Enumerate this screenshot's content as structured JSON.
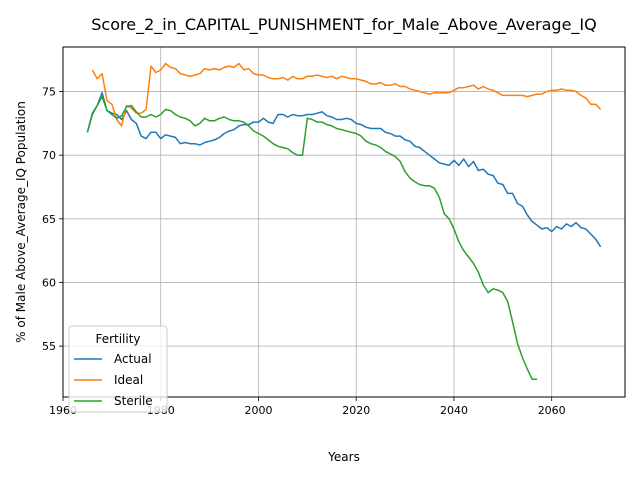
{
  "chart_data": {
    "type": "line",
    "title": "Score_2_in_CAPITAL_PUNISHMENT_for_Male_Above_Average_IQ",
    "xlabel": "Years",
    "ylabel": "% of Male Above_Average_IQ Population",
    "xlim": [
      1960,
      2075
    ],
    "ylim": [
      51,
      78.5
    ],
    "x_ticks": [
      1960,
      1980,
      2000,
      2020,
      2040,
      2060
    ],
    "y_ticks": [
      55,
      60,
      65,
      70,
      75
    ],
    "grid": true,
    "legend": {
      "title": "Fertility",
      "placement": "lower-left"
    },
    "series": [
      {
        "name": "Actual",
        "color": "#1f77b4",
        "points": [
          [
            1965,
            71.8
          ],
          [
            1966,
            73.2
          ],
          [
            1967,
            73.9
          ],
          [
            1968,
            74.9
          ],
          [
            1969,
            73.5
          ],
          [
            1970,
            73.3
          ],
          [
            1971,
            73.2
          ],
          [
            1972,
            72.8
          ],
          [
            1973,
            73.5
          ],
          [
            1974,
            72.8
          ],
          [
            1975,
            72.5
          ],
          [
            1976,
            71.5
          ],
          [
            1977,
            71.3
          ],
          [
            1978,
            71.8
          ],
          [
            1979,
            71.8
          ],
          [
            1980,
            71.3
          ],
          [
            1981,
            71.6
          ],
          [
            1982,
            71.5
          ],
          [
            1983,
            71.4
          ],
          [
            1984,
            70.9
          ],
          [
            1985,
            71.0
          ],
          [
            1986,
            70.9
          ],
          [
            1987,
            70.9
          ],
          [
            1988,
            70.8
          ],
          [
            1989,
            71.0
          ],
          [
            1990,
            71.1
          ],
          [
            1991,
            71.2
          ],
          [
            1992,
            71.4
          ],
          [
            1993,
            71.7
          ],
          [
            1994,
            71.9
          ],
          [
            1995,
            72.0
          ],
          [
            1996,
            72.3
          ],
          [
            1997,
            72.4
          ],
          [
            1998,
            72.4
          ],
          [
            1999,
            72.6
          ],
          [
            2000,
            72.6
          ],
          [
            2001,
            72.9
          ],
          [
            2002,
            72.6
          ],
          [
            2003,
            72.5
          ],
          [
            2004,
            73.2
          ],
          [
            2005,
            73.2
          ],
          [
            2006,
            73.0
          ],
          [
            2007,
            73.2
          ],
          [
            2008,
            73.1
          ],
          [
            2009,
            73.1
          ],
          [
            2010,
            73.2
          ],
          [
            2011,
            73.2
          ],
          [
            2012,
            73.3
          ],
          [
            2013,
            73.4
          ],
          [
            2014,
            73.1
          ],
          [
            2015,
            73.0
          ],
          [
            2016,
            72.8
          ],
          [
            2017,
            72.8
          ],
          [
            2018,
            72.9
          ],
          [
            2019,
            72.8
          ],
          [
            2020,
            72.5
          ],
          [
            2021,
            72.4
          ],
          [
            2022,
            72.2
          ],
          [
            2023,
            72.1
          ],
          [
            2024,
            72.1
          ],
          [
            2025,
            72.1
          ],
          [
            2026,
            71.8
          ],
          [
            2027,
            71.7
          ],
          [
            2028,
            71.5
          ],
          [
            2029,
            71.5
          ],
          [
            2030,
            71.2
          ],
          [
            2031,
            71.1
          ],
          [
            2032,
            70.7
          ],
          [
            2033,
            70.6
          ],
          [
            2034,
            70.3
          ],
          [
            2035,
            70.0
          ],
          [
            2036,
            69.7
          ],
          [
            2037,
            69.4
          ],
          [
            2038,
            69.3
          ],
          [
            2039,
            69.2
          ],
          [
            2040,
            69.6
          ],
          [
            2041,
            69.2
          ],
          [
            2042,
            69.7
          ],
          [
            2043,
            69.1
          ],
          [
            2044,
            69.5
          ],
          [
            2045,
            68.8
          ],
          [
            2046,
            68.9
          ],
          [
            2047,
            68.5
          ],
          [
            2048,
            68.4
          ],
          [
            2049,
            67.8
          ],
          [
            2050,
            67.7
          ],
          [
            2051,
            67.0
          ],
          [
            2052,
            67.0
          ],
          [
            2053,
            66.2
          ],
          [
            2054,
            66.0
          ],
          [
            2055,
            65.3
          ],
          [
            2056,
            64.8
          ],
          [
            2057,
            64.5
          ],
          [
            2058,
            64.2
          ],
          [
            2059,
            64.3
          ],
          [
            2060,
            64.0
          ],
          [
            2061,
            64.4
          ],
          [
            2062,
            64.2
          ],
          [
            2063,
            64.6
          ],
          [
            2064,
            64.4
          ],
          [
            2065,
            64.7
          ],
          [
            2066,
            64.3
          ],
          [
            2067,
            64.2
          ],
          [
            2068,
            63.8
          ],
          [
            2069,
            63.4
          ],
          [
            2070,
            62.8
          ]
        ]
      },
      {
        "name": "Ideal",
        "color": "#ff7f0e",
        "points": [
          [
            1966,
            76.7
          ],
          [
            1967,
            76.0
          ],
          [
            1968,
            76.4
          ],
          [
            1969,
            74.3
          ],
          [
            1970,
            74.0
          ],
          [
            1971,
            72.8
          ],
          [
            1972,
            72.3
          ],
          [
            1973,
            73.9
          ],
          [
            1974,
            73.7
          ],
          [
            1975,
            73.3
          ],
          [
            1976,
            73.3
          ],
          [
            1977,
            73.6
          ],
          [
            1978,
            77.0
          ],
          [
            1979,
            76.5
          ],
          [
            1980,
            76.7
          ],
          [
            1981,
            77.2
          ],
          [
            1982,
            76.9
          ],
          [
            1983,
            76.8
          ],
          [
            1984,
            76.4
          ],
          [
            1985,
            76.3
          ],
          [
            1986,
            76.2
          ],
          [
            1987,
            76.3
          ],
          [
            1988,
            76.4
          ],
          [
            1989,
            76.8
          ],
          [
            1990,
            76.7
          ],
          [
            1991,
            76.8
          ],
          [
            1992,
            76.7
          ],
          [
            1993,
            76.9
          ],
          [
            1994,
            77.0
          ],
          [
            1995,
            76.9
          ],
          [
            1996,
            77.2
          ],
          [
            1997,
            76.7
          ],
          [
            1998,
            76.8
          ],
          [
            1999,
            76.4
          ],
          [
            2000,
            76.3
          ],
          [
            2001,
            76.3
          ],
          [
            2002,
            76.1
          ],
          [
            2003,
            76.0
          ],
          [
            2004,
            76.0
          ],
          [
            2005,
            76.1
          ],
          [
            2006,
            75.9
          ],
          [
            2007,
            76.2
          ],
          [
            2008,
            76.0
          ],
          [
            2009,
            76.0
          ],
          [
            2010,
            76.2
          ],
          [
            2011,
            76.2
          ],
          [
            2012,
            76.3
          ],
          [
            2013,
            76.2
          ],
          [
            2014,
            76.1
          ],
          [
            2015,
            76.2
          ],
          [
            2016,
            76.0
          ],
          [
            2017,
            76.2
          ],
          [
            2018,
            76.1
          ],
          [
            2019,
            76.0
          ],
          [
            2020,
            76.0
          ],
          [
            2021,
            75.9
          ],
          [
            2022,
            75.8
          ],
          [
            2023,
            75.6
          ],
          [
            2024,
            75.6
          ],
          [
            2025,
            75.7
          ],
          [
            2026,
            75.5
          ],
          [
            2027,
            75.5
          ],
          [
            2028,
            75.6
          ],
          [
            2029,
            75.4
          ],
          [
            2030,
            75.4
          ],
          [
            2031,
            75.2
          ],
          [
            2032,
            75.1
          ],
          [
            2033,
            75.0
          ],
          [
            2034,
            74.9
          ],
          [
            2035,
            74.8
          ],
          [
            2036,
            74.9
          ],
          [
            2037,
            74.9
          ],
          [
            2038,
            74.9
          ],
          [
            2039,
            74.9
          ],
          [
            2040,
            75.1
          ],
          [
            2041,
            75.3
          ],
          [
            2042,
            75.3
          ],
          [
            2043,
            75.4
          ],
          [
            2044,
            75.5
          ],
          [
            2045,
            75.2
          ],
          [
            2046,
            75.4
          ],
          [
            2047,
            75.2
          ],
          [
            2048,
            75.1
          ],
          [
            2049,
            74.9
          ],
          [
            2050,
            74.7
          ],
          [
            2051,
            74.7
          ],
          [
            2052,
            74.7
          ],
          [
            2053,
            74.7
          ],
          [
            2054,
            74.7
          ],
          [
            2055,
            74.6
          ],
          [
            2056,
            74.7
          ],
          [
            2057,
            74.8
          ],
          [
            2058,
            74.8
          ],
          [
            2059,
            75.0
          ],
          [
            2060,
            75.1
          ],
          [
            2061,
            75.1
          ],
          [
            2062,
            75.2
          ],
          [
            2063,
            75.1
          ],
          [
            2064,
            75.1
          ],
          [
            2065,
            75.0
          ],
          [
            2066,
            74.7
          ],
          [
            2067,
            74.5
          ],
          [
            2068,
            74.0
          ],
          [
            2069,
            74.0
          ],
          [
            2070,
            73.6
          ]
        ]
      },
      {
        "name": "Sterile",
        "color": "#2ca02c",
        "points": [
          [
            1965,
            71.8
          ],
          [
            1966,
            73.3
          ],
          [
            1967,
            73.9
          ],
          [
            1968,
            74.6
          ],
          [
            1969,
            73.5
          ],
          [
            1970,
            73.2
          ],
          [
            1971,
            72.9
          ],
          [
            1972,
            73.1
          ],
          [
            1973,
            73.8
          ],
          [
            1974,
            73.9
          ],
          [
            1975,
            73.4
          ],
          [
            1976,
            73.0
          ],
          [
            1977,
            73.0
          ],
          [
            1978,
            73.2
          ],
          [
            1979,
            73.0
          ],
          [
            1980,
            73.2
          ],
          [
            1981,
            73.6
          ],
          [
            1982,
            73.5
          ],
          [
            1983,
            73.2
          ],
          [
            1984,
            73.0
          ],
          [
            1985,
            72.9
          ],
          [
            1986,
            72.7
          ],
          [
            1987,
            72.3
          ],
          [
            1988,
            72.5
          ],
          [
            1989,
            72.9
          ],
          [
            1990,
            72.7
          ],
          [
            1991,
            72.7
          ],
          [
            1992,
            72.9
          ],
          [
            1993,
            73.0
          ],
          [
            1994,
            72.8
          ],
          [
            1995,
            72.7
          ],
          [
            1996,
            72.7
          ],
          [
            1997,
            72.6
          ],
          [
            1998,
            72.3
          ],
          [
            1999,
            71.9
          ],
          [
            2000,
            71.7
          ],
          [
            2001,
            71.5
          ],
          [
            2002,
            71.2
          ],
          [
            2003,
            70.9
          ],
          [
            2004,
            70.7
          ],
          [
            2005,
            70.6
          ],
          [
            2006,
            70.5
          ],
          [
            2007,
            70.2
          ],
          [
            2008,
            70.0
          ],
          [
            2009,
            70.0
          ],
          [
            2010,
            72.9
          ],
          [
            2011,
            72.8
          ],
          [
            2012,
            72.6
          ],
          [
            2013,
            72.6
          ],
          [
            2014,
            72.4
          ],
          [
            2015,
            72.3
          ],
          [
            2016,
            72.1
          ],
          [
            2017,
            72.0
          ],
          [
            2018,
            71.9
          ],
          [
            2019,
            71.8
          ],
          [
            2020,
            71.7
          ],
          [
            2021,
            71.5
          ],
          [
            2022,
            71.1
          ],
          [
            2023,
            70.9
          ],
          [
            2024,
            70.8
          ],
          [
            2025,
            70.6
          ],
          [
            2026,
            70.3
          ],
          [
            2027,
            70.1
          ],
          [
            2028,
            69.9
          ],
          [
            2029,
            69.5
          ],
          [
            2030,
            68.7
          ],
          [
            2031,
            68.2
          ],
          [
            2032,
            67.9
          ],
          [
            2033,
            67.7
          ],
          [
            2034,
            67.6
          ],
          [
            2035,
            67.6
          ],
          [
            2036,
            67.4
          ],
          [
            2037,
            66.7
          ],
          [
            2038,
            65.4
          ],
          [
            2039,
            65.0
          ],
          [
            2040,
            64.2
          ],
          [
            2041,
            63.2
          ],
          [
            2042,
            62.5
          ],
          [
            2043,
            62.0
          ],
          [
            2044,
            61.5
          ],
          [
            2045,
            60.8
          ],
          [
            2046,
            59.8
          ],
          [
            2047,
            59.2
          ],
          [
            2048,
            59.5
          ],
          [
            2049,
            59.4
          ],
          [
            2050,
            59.2
          ],
          [
            2051,
            58.5
          ],
          [
            2052,
            56.9
          ],
          [
            2053,
            55.2
          ],
          [
            2054,
            54.1
          ],
          [
            2055,
            53.2
          ],
          [
            2056,
            52.4
          ],
          [
            2057,
            52.4
          ]
        ]
      }
    ]
  }
}
